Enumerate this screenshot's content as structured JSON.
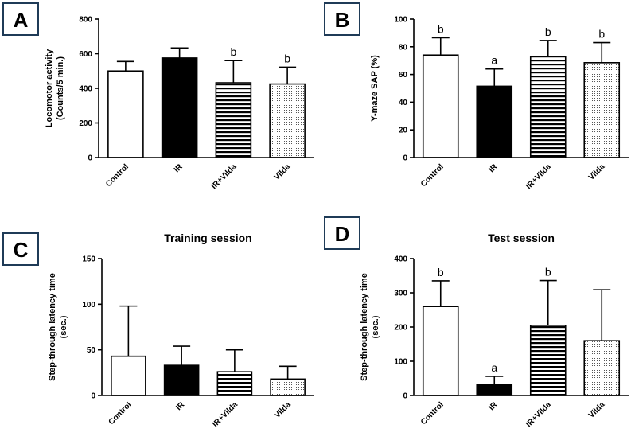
{
  "figure_title": "",
  "colors": {
    "ink": "#000000",
    "label_border": "#1f3b57",
    "background": "#ffffff"
  },
  "panels": [
    {
      "label": "A"
    },
    {
      "label": "B"
    },
    {
      "label": "C"
    },
    {
      "label": "D"
    }
  ],
  "chart_data": [
    {
      "type": "bar",
      "panel": "A",
      "title": "",
      "xlabel": "",
      "ylabel_lines": [
        "Locomotor activity",
        "(Counts/5 min.)"
      ],
      "categories": [
        "Control",
        "IR",
        "IR+Vilda",
        "Vilda"
      ],
      "values": [
        500,
        575,
        432,
        425
      ],
      "errors": [
        55,
        58,
        128,
        97
      ],
      "significance": [
        "",
        "",
        "b",
        "b"
      ],
      "fills": [
        "white",
        "black",
        "hlines",
        "dots"
      ],
      "ylim": [
        0,
        800
      ],
      "yticks": [
        0,
        200,
        400,
        600,
        800
      ],
      "legend": "none",
      "grid": false
    },
    {
      "type": "bar",
      "panel": "B",
      "title": "",
      "xlabel": "",
      "ylabel_lines": [
        "Y-maze SAP (%)"
      ],
      "categories": [
        "Control",
        "IR",
        "IR+Vilda",
        "Vilda"
      ],
      "values": [
        74,
        51.5,
        73,
        68.5
      ],
      "errors": [
        12.5,
        12.5,
        11.5,
        14.5
      ],
      "significance": [
        "b",
        "a",
        "b",
        "b"
      ],
      "fills": [
        "white",
        "black",
        "hlines",
        "dots"
      ],
      "ylim": [
        0,
        100
      ],
      "yticks": [
        0,
        20,
        40,
        60,
        80,
        100
      ],
      "legend": "none",
      "grid": false
    },
    {
      "type": "bar",
      "panel": "C",
      "title": "Training session",
      "xlabel": "",
      "ylabel_lines": [
        "Step-through latency time",
        "(sec.)"
      ],
      "categories": [
        "Control",
        "IR",
        "IR+Vilda",
        "Vilda"
      ],
      "values": [
        43,
        33,
        26,
        18
      ],
      "errors": [
        55,
        21,
        24,
        14
      ],
      "significance": [
        "",
        "",
        "",
        ""
      ],
      "fills": [
        "white",
        "black",
        "hlines",
        "dots"
      ],
      "ylim": [
        0,
        150
      ],
      "yticks": [
        0,
        50,
        100,
        150
      ],
      "legend": "none",
      "grid": false
    },
    {
      "type": "bar",
      "panel": "D",
      "title": "Test session",
      "xlabel": "",
      "ylabel_lines": [
        "Step-through latency time",
        "(sec.)"
      ],
      "categories": [
        "Control",
        "IR",
        "IR+Vilda",
        "Vilda"
      ],
      "values": [
        260,
        32,
        205,
        160
      ],
      "errors": [
        75,
        24,
        131,
        149
      ],
      "significance": [
        "b",
        "a",
        "b",
        ""
      ],
      "fills": [
        "white",
        "black",
        "hlines",
        "dots"
      ],
      "ylim": [
        0,
        400
      ],
      "yticks": [
        0,
        100,
        200,
        300,
        400
      ],
      "legend": "none",
      "grid": false
    }
  ]
}
